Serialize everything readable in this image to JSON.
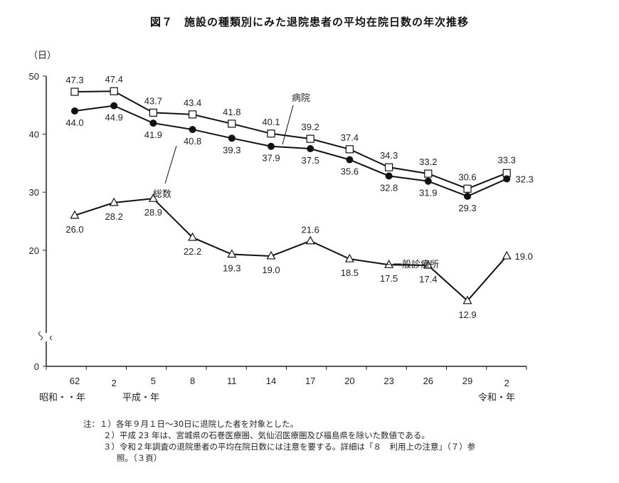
{
  "title": "図７　施設の種類別にみた退院患者の平均在院日数の年次推移",
  "chart_data": {
    "type": "line",
    "title": "図７　施設の種類別にみた退院患者の平均在院日数の年次推移",
    "ylabel": "（日）",
    "ylim": [
      0,
      50
    ],
    "yticks": [
      "0",
      "20",
      "30",
      "40",
      "50"
    ],
    "axis_break": true,
    "grid": false,
    "categories": [
      "62",
      "2",
      "5",
      "8",
      "11",
      "14",
      "17",
      "20",
      "23",
      "26",
      "29",
      "2"
    ],
    "era_labels": [
      "昭和・・年",
      "平成・年",
      "令和・年"
    ],
    "series": [
      {
        "name": "病院",
        "marker": "open-square",
        "values": [
          47.3,
          47.4,
          43.7,
          43.4,
          41.8,
          40.1,
          39.2,
          37.4,
          34.3,
          33.2,
          30.6,
          33.3
        ]
      },
      {
        "name": "総数",
        "marker": "filled-circle",
        "values": [
          44.0,
          44.9,
          41.9,
          40.8,
          39.3,
          37.9,
          37.5,
          35.6,
          32.8,
          31.9,
          29.3,
          32.3
        ]
      },
      {
        "name": "一般診療所",
        "marker": "open-triangle",
        "values": [
          26.0,
          28.2,
          28.9,
          22.2,
          19.3,
          19.0,
          21.6,
          18.5,
          17.5,
          17.4,
          12.9,
          19.0
        ]
      }
    ]
  },
  "notes": [
    "注：１）各年９月１日～30日に退院した者を対象とした。",
    "２）平成 23 年は、宮城県の石巻医療圏、気仙沼医療圏及び福島県を除いた数値である。",
    "３）令和２年調査の退院患者の平均在院日数には注意を要する。詳細は「８　利用上の注意」（７）参",
    "照。（３頁）"
  ]
}
